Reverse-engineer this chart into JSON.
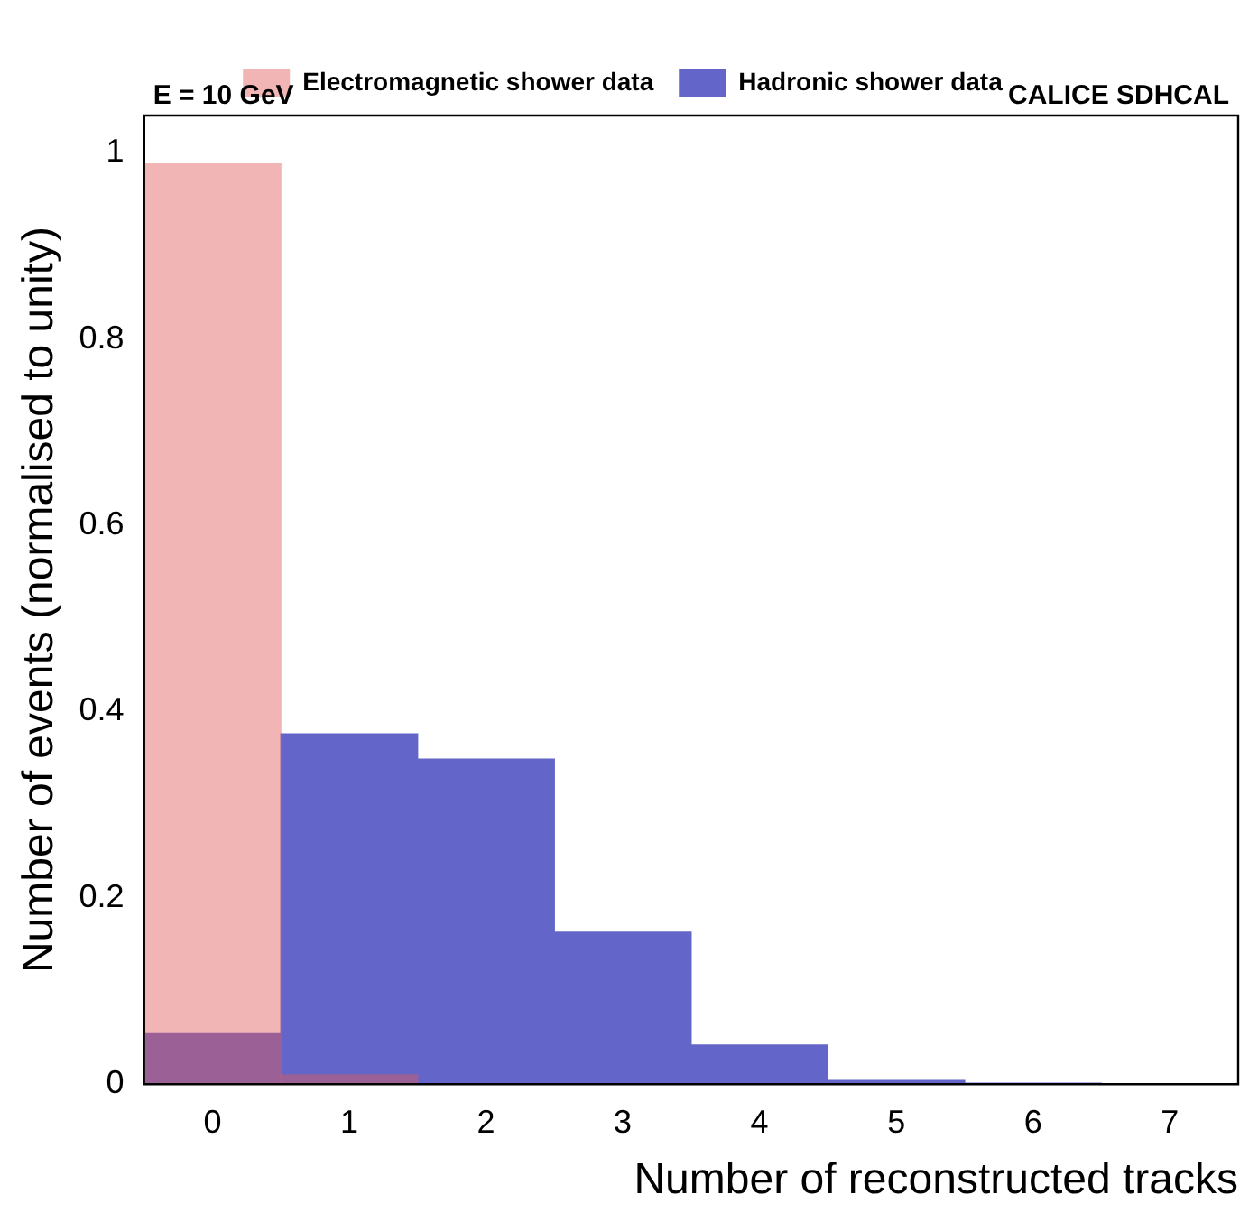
{
  "chart_data": {
    "type": "histogram",
    "xlabel": "Number of reconstructed tracks",
    "ylabel": "Number of events (normalised to unity)",
    "annotations": [
      "E = 10 GeV",
      "CALICE SDHCAL"
    ],
    "bins": [
      -0.5,
      0.5,
      1.5,
      2.5,
      3.5,
      4.5,
      5.5,
      6.5,
      7.5
    ],
    "series": [
      {
        "name": "Hadronic shower data",
        "color": "#6366c8",
        "values": [
          0.054,
          0.376,
          0.349,
          0.163,
          0.042,
          0.004,
          0.001,
          0
        ]
      },
      {
        "name": "Electromagnetic shower data",
        "color": "#e05a5a",
        "values": [
          0.988,
          0.01,
          0,
          0,
          0,
          0,
          0,
          0
        ]
      }
    ],
    "xlim": [
      -0.5,
      7.5
    ],
    "xticks": [
      0,
      1,
      2,
      3,
      4,
      5,
      6,
      7
    ],
    "ylim": [
      0,
      1.04
    ],
    "yticks": [
      0,
      0.2,
      0.4,
      0.6,
      0.8,
      1
    ],
    "grid": false,
    "legend": "top"
  }
}
